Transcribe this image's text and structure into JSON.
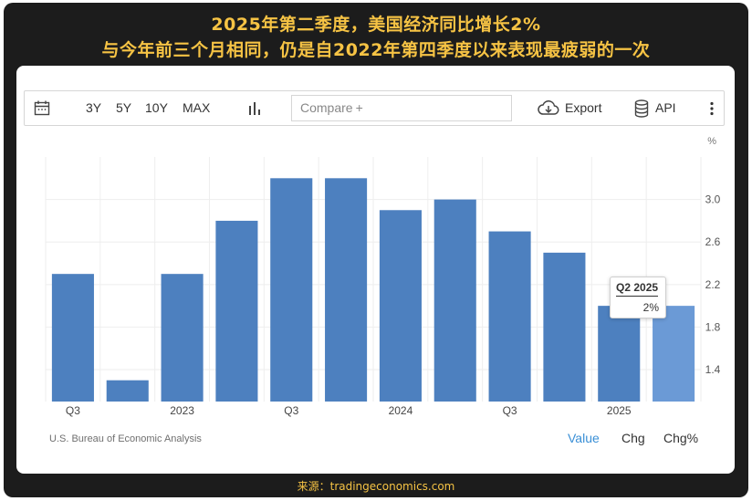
{
  "headline": {
    "line1": "2025年第二季度，美国经济同比增长2%",
    "line2": "与今年前三个月相同，仍是自2022年第四季度以来表现最疲弱的一次"
  },
  "toolbar": {
    "ranges": [
      "3Y",
      "5Y",
      "10Y",
      "MAX"
    ],
    "compare_placeholder": "Compare",
    "compare_plus": "+",
    "export_label": "Export",
    "api_label": "API"
  },
  "chart_data": {
    "type": "bar",
    "categories": [
      "Q3 2022",
      "Q4 2022",
      "Q1 2023",
      "Q2 2023",
      "Q3 2023",
      "Q4 2023",
      "Q1 2024",
      "Q2 2024",
      "Q3 2024",
      "Q4 2024",
      "Q1 2025",
      "Q2 2025"
    ],
    "values": [
      2.3,
      1.3,
      2.3,
      2.8,
      3.2,
      3.2,
      2.9,
      3.0,
      2.7,
      2.5,
      2.0,
      2.0
    ],
    "x_tick_labels": [
      {
        "index": 0,
        "label": "Q3"
      },
      {
        "index": 2,
        "label": "2023"
      },
      {
        "index": 4,
        "label": "Q3"
      },
      {
        "index": 6,
        "label": "2024"
      },
      {
        "index": 8,
        "label": "Q3"
      },
      {
        "index": 10,
        "label": "2025"
      }
    ],
    "y_ticks": [
      1.4,
      1.8,
      2.2,
      2.6,
      3.0
    ],
    "y_tick_labels": [
      "1.4",
      "1.8",
      "2.2",
      "2.6",
      "3.0"
    ],
    "ylim": [
      1.1,
      3.4
    ],
    "y_unit": "%",
    "highlight_index": 11,
    "colors": {
      "bar": "#4d80bf",
      "highlight": "#6b9ad6",
      "grid": "#eeeeee"
    },
    "grid": true,
    "tooltip": {
      "title": "Q2 2025",
      "value": "2%"
    }
  },
  "footer": {
    "source": "U.S. Bureau of Economic Analysis",
    "tabs": [
      "Value",
      "Chg",
      "Chg%"
    ],
    "active_tab_color": "#3a8fd6"
  },
  "bottom_source": "来源：tradingeconomics.com"
}
